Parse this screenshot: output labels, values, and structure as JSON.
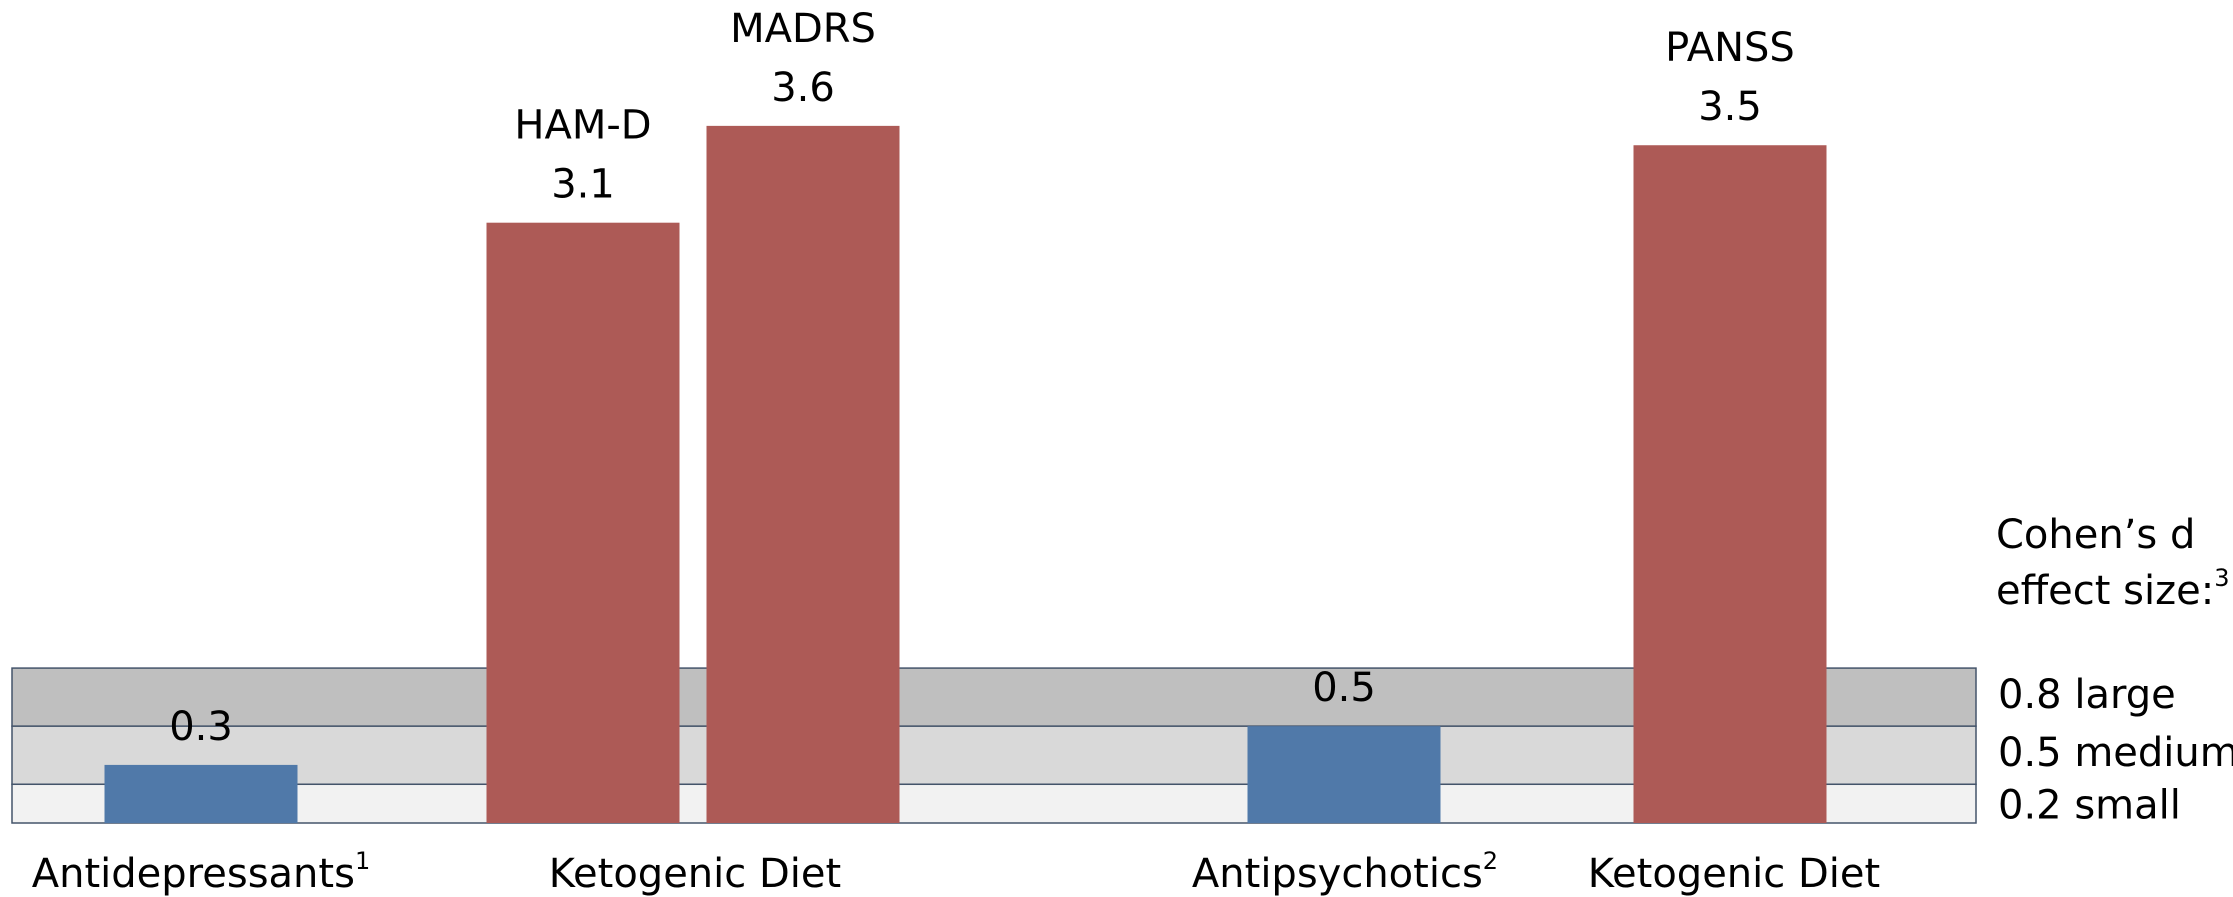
{
  "chart_data": {
    "type": "bar",
    "ylim": [
      0,
      4.25
    ],
    "groups": [
      {
        "label": "Antidepressants",
        "note": "1",
        "bars": [
          {
            "value": 0.3,
            "color": "#5079a9"
          }
        ]
      },
      {
        "label": "Ketogenic Diet",
        "bars": [
          {
            "name": "HAM-D",
            "value": 3.1,
            "color": "#ad5a56"
          },
          {
            "name": "MADRS",
            "value": 3.6,
            "color": "#ad5a56"
          }
        ]
      },
      {
        "label": "Antipsychotics",
        "note": "2",
        "bars": [
          {
            "value": 0.5,
            "color": "#5079a9"
          }
        ]
      },
      {
        "label": "Ketogenic Diet",
        "bars": [
          {
            "name": "PANSS",
            "value": 3.5,
            "color": "#ad5a56"
          }
        ]
      }
    ],
    "bands_title": [
      "Cohen’s d",
      "effect size:"
    ],
    "bands_note": "3",
    "bands": [
      {
        "value": 0.8,
        "label": "large",
        "color": "#bfbfbf"
      },
      {
        "value": 0.5,
        "label": "medium",
        "color": "#d9d9d9"
      },
      {
        "value": 0.2,
        "label": "small",
        "color": "#f2f2f2"
      }
    ]
  }
}
